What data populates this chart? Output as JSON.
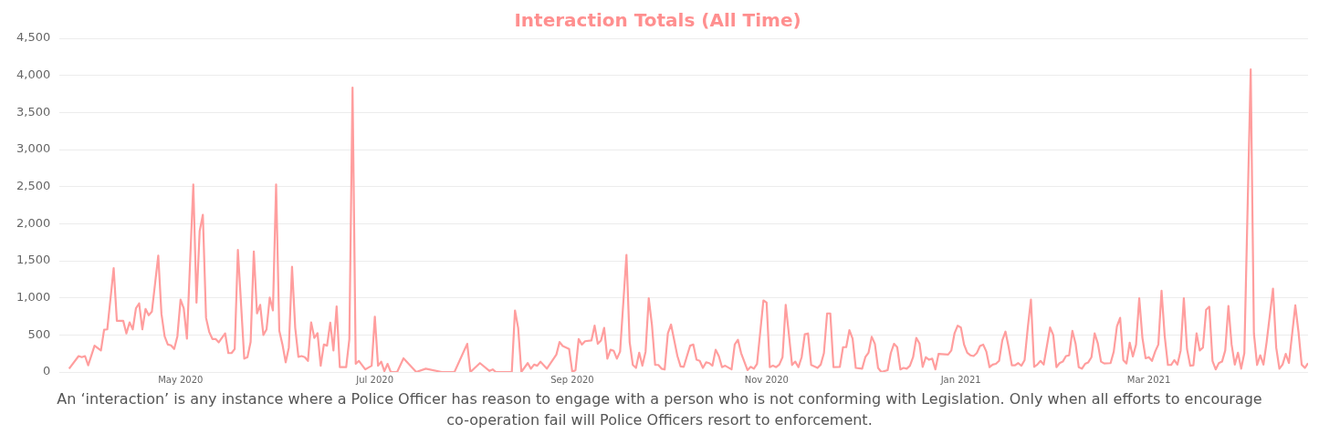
{
  "chart_data": {
    "type": "line",
    "title": "Interaction Totals (All Time)",
    "annotations": [
      "An ‘interaction’ is any instance where a Police Officer has reason to engage with a person who is not conforming with Legislation. Only when all efforts to encourage co-operation fail will Police Officers resort to enforcement."
    ],
    "xlim": [
      "2020-03-24",
      "2021-04-20"
    ],
    "xticks": [
      {
        "value": "2020-05-01",
        "label": "May 2020"
      },
      {
        "value": "2020-07-01",
        "label": "Jul 2020"
      },
      {
        "value": "2020-09-01",
        "label": "Sep 2020"
      },
      {
        "value": "2020-11-01",
        "label": "Nov 2020"
      },
      {
        "value": "2021-01-01",
        "label": "Jan 2021"
      },
      {
        "value": "2021-03-01",
        "label": "Mar 2021"
      }
    ],
    "ylim": [
      0,
      4500
    ],
    "yticks": [
      0,
      500,
      {
        "value": 1000,
        "label": "1,000"
      },
      {
        "value": 1500,
        "label": "1,500"
      },
      {
        "value": 2000,
        "label": "2,000"
      },
      {
        "value": 2500,
        "label": "2,500"
      },
      {
        "value": 3000,
        "label": "3,000"
      },
      {
        "value": 3500,
        "label": "3,500"
      },
      {
        "value": 4000,
        "label": "4,000"
      },
      {
        "value": 4500,
        "label": "4,500"
      }
    ],
    "grid": "y",
    "legend": false,
    "marker": "none",
    "line_style": "solid",
    "x": [
      "2020-03-27",
      "2020-03-30",
      "2020-03-31",
      "2020-04-01",
      "2020-04-02",
      "2020-04-04",
      "2020-04-06",
      "2020-04-07",
      "2020-04-08",
      "2020-04-10",
      "2020-04-11",
      "2020-04-13",
      "2020-04-14",
      "2020-04-15",
      "2020-04-16",
      "2020-04-17",
      "2020-04-18",
      "2020-04-19",
      "2020-04-20",
      "2020-04-21",
      "2020-04-22",
      "2020-04-24",
      "2020-04-25",
      "2020-04-26",
      "2020-04-27",
      "2020-04-28",
      "2020-04-29",
      "2020-04-30",
      "2020-05-01",
      "2020-05-02",
      "2020-05-03",
      "2020-05-05",
      "2020-05-06",
      "2020-05-07",
      "2020-05-08",
      "2020-05-09",
      "2020-05-10",
      "2020-05-11",
      "2020-05-12",
      "2020-05-13",
      "2020-05-15",
      "2020-05-16",
      "2020-05-17",
      "2020-05-18",
      "2020-05-19",
      "2020-05-21",
      "2020-05-22",
      "2020-05-23",
      "2020-05-24",
      "2020-05-25",
      "2020-05-26",
      "2020-05-27",
      "2020-05-28",
      "2020-05-29",
      "2020-05-30",
      "2020-05-31",
      "2020-06-01",
      "2020-06-02",
      "2020-06-03",
      "2020-06-04",
      "2020-06-05",
      "2020-06-06",
      "2020-06-07",
      "2020-06-08",
      "2020-06-09",
      "2020-06-10",
      "2020-06-11",
      "2020-06-12",
      "2020-06-13",
      "2020-06-14",
      "2020-06-15",
      "2020-06-16",
      "2020-06-17",
      "2020-06-18",
      "2020-06-19",
      "2020-06-20",
      "2020-06-22",
      "2020-06-23",
      "2020-06-24",
      "2020-06-25",
      "2020-06-26",
      "2020-06-28",
      "2020-06-30",
      "2020-07-01",
      "2020-07-02",
      "2020-07-03",
      "2020-07-04",
      "2020-07-05",
      "2020-07-06",
      "2020-07-08",
      "2020-07-10",
      "2020-07-14",
      "2020-07-17",
      "2020-07-22",
      "2020-07-26",
      "2020-07-30",
      "2020-07-31",
      "2020-08-03",
      "2020-08-06",
      "2020-08-07",
      "2020-08-08",
      "2020-08-13",
      "2020-08-14",
      "2020-08-15",
      "2020-08-16",
      "2020-08-18",
      "2020-08-19",
      "2020-08-20",
      "2020-08-21",
      "2020-08-22",
      "2020-08-24",
      "2020-08-27",
      "2020-08-28",
      "2020-08-29",
      "2020-08-31",
      "2020-09-01",
      "2020-09-02",
      "2020-09-03",
      "2020-09-04",
      "2020-09-05",
      "2020-09-07",
      "2020-09-08",
      "2020-09-09",
      "2020-09-10",
      "2020-09-11",
      "2020-09-12",
      "2020-09-13",
      "2020-09-14",
      "2020-09-15",
      "2020-09-16",
      "2020-09-18",
      "2020-09-19",
      "2020-09-20",
      "2020-09-21",
      "2020-09-22",
      "2020-09-23",
      "2020-09-24",
      "2020-09-25",
      "2020-09-26",
      "2020-09-27",
      "2020-09-28",
      "2020-09-29",
      "2020-09-30",
      "2020-10-01",
      "2020-10-02",
      "2020-10-04",
      "2020-10-05",
      "2020-10-06",
      "2020-10-07",
      "2020-10-08",
      "2020-10-09",
      "2020-10-10",
      "2020-10-11",
      "2020-10-12",
      "2020-10-13",
      "2020-10-14",
      "2020-10-15",
      "2020-10-16",
      "2020-10-17",
      "2020-10-18",
      "2020-10-19",
      "2020-10-21",
      "2020-10-22",
      "2020-10-23",
      "2020-10-24",
      "2020-10-26",
      "2020-10-27",
      "2020-10-28",
      "2020-10-29",
      "2020-10-31",
      "2020-11-01",
      "2020-11-02",
      "2020-11-03",
      "2020-11-04",
      "2020-11-05",
      "2020-11-06",
      "2020-11-07",
      "2020-11-08",
      "2020-11-09",
      "2020-11-10",
      "2020-11-11",
      "2020-11-12",
      "2020-11-13",
      "2020-11-14",
      "2020-11-15",
      "2020-11-17",
      "2020-11-18",
      "2020-11-19",
      "2020-11-20",
      "2020-11-21",
      "2020-11-22",
      "2020-11-24",
      "2020-11-25",
      "2020-11-26",
      "2020-11-27",
      "2020-11-28",
      "2020-11-29",
      "2020-12-01",
      "2020-12-02",
      "2020-12-03",
      "2020-12-04",
      "2020-12-05",
      "2020-12-06",
      "2020-12-07",
      "2020-12-09",
      "2020-12-10",
      "2020-12-11",
      "2020-12-12",
      "2020-12-13",
      "2020-12-14",
      "2020-12-15",
      "2020-12-16",
      "2020-12-17",
      "2020-12-18",
      "2020-12-19",
      "2020-12-20",
      "2020-12-21",
      "2020-12-22",
      "2020-12-23",
      "2020-12-24",
      "2020-12-25",
      "2020-12-28",
      "2020-12-29",
      "2020-12-30",
      "2020-12-31",
      "2021-01-01",
      "2021-01-02",
      "2021-01-03",
      "2021-01-04",
      "2021-01-05",
      "2021-01-06",
      "2021-01-07",
      "2021-01-08",
      "2021-01-09",
      "2021-01-10",
      "2021-01-11",
      "2021-01-12",
      "2021-01-13",
      "2021-01-14",
      "2021-01-15",
      "2021-01-16",
      "2021-01-17",
      "2021-01-18",
      "2021-01-19",
      "2021-01-20",
      "2021-01-21",
      "2021-01-22",
      "2021-01-23",
      "2021-01-24",
      "2021-01-25",
      "2021-01-26",
      "2021-01-27",
      "2021-01-29",
      "2021-01-30",
      "2021-01-31",
      "2021-02-01",
      "2021-02-02",
      "2021-02-03",
      "2021-02-04",
      "2021-02-05",
      "2021-02-06",
      "2021-02-07",
      "2021-02-08",
      "2021-02-09",
      "2021-02-10",
      "2021-02-11",
      "2021-02-12",
      "2021-02-13",
      "2021-02-14",
      "2021-02-15",
      "2021-02-17",
      "2021-02-18",
      "2021-02-19",
      "2021-02-20",
      "2021-02-21",
      "2021-02-22",
      "2021-02-23",
      "2021-02-24",
      "2021-02-25",
      "2021-02-26",
      "2021-02-27",
      "2021-02-28",
      "2021-03-01",
      "2021-03-02",
      "2021-03-03",
      "2021-03-04",
      "2021-03-05",
      "2021-03-06",
      "2021-03-07",
      "2021-03-08",
      "2021-03-09",
      "2021-03-10",
      "2021-03-11",
      "2021-03-12",
      "2021-03-13",
      "2021-03-14",
      "2021-03-15",
      "2021-03-16",
      "2021-03-17",
      "2021-03-18",
      "2021-03-19",
      "2021-03-20",
      "2021-03-21",
      "2021-03-22",
      "2021-03-23",
      "2021-03-24",
      "2021-03-25",
      "2021-03-26",
      "2021-03-27",
      "2021-03-28",
      "2021-03-29",
      "2021-03-30",
      "2021-03-31",
      "2021-04-02",
      "2021-04-03",
      "2021-04-04",
      "2021-04-05",
      "2021-04-06",
      "2021-04-07",
      "2021-04-09",
      "2021-04-10",
      "2021-04-11",
      "2021-04-12",
      "2021-04-13",
      "2021-04-14",
      "2021-04-16",
      "2021-04-17",
      "2021-04-18",
      "2021-04-19",
      "2021-04-20"
    ],
    "series": [
      {
        "color": "#ff9e9e",
        "values": [
          45,
          215,
          200,
          215,
          90,
          355,
          290,
          570,
          575,
          1400,
          690,
          690,
          520,
          670,
          575,
          860,
          925,
          575,
          850,
          765,
          815,
          1570,
          785,
          480,
          370,
          360,
          310,
          480,
          975,
          860,
          450,
          2530,
          935,
          1900,
          2120,
          730,
          540,
          445,
          445,
          400,
          520,
          255,
          255,
          310,
          1645,
          180,
          200,
          405,
          1625,
          790,
          905,
          500,
          575,
          1005,
          830,
          2530,
          555,
          370,
          130,
          330,
          1420,
          595,
          205,
          215,
          200,
          150,
          670,
          460,
          525,
          85,
          370,
          355,
          665,
          290,
          885,
          65,
          65,
          445,
          3835,
          110,
          150,
          35,
          85,
          745,
          85,
          140,
          10,
          110,
          0,
          0,
          185,
          0,
          45,
          0,
          0,
          380,
          0,
          120,
          15,
          35,
          0,
          0,
          830,
          595,
          0,
          120,
          45,
          100,
          85,
          140,
          45,
          235,
          405,
          350,
          310,
          0,
          25,
          445,
          370,
          415,
          425,
          625,
          380,
          425,
          595,
          180,
          300,
          285,
          180,
          275,
          1580,
          405,
          95,
          55,
          260,
          85,
          275,
          995,
          635,
          95,
          95,
          45,
          35,
          520,
          640,
          215,
          75,
          70,
          215,
          355,
          370,
          165,
          150,
          55,
          130,
          120,
          85,
          300,
          215,
          65,
          85,
          35,
          370,
          435,
          255,
          25,
          70,
          45,
          110,
          965,
          935,
          65,
          85,
          65,
          100,
          200,
          905,
          510,
          95,
          140,
          65,
          200,
          510,
          520,
          95,
          55,
          100,
          255,
          790,
          790,
          65,
          70,
          335,
          335,
          565,
          450,
          55,
          45,
          200,
          260,
          475,
          380,
          55,
          0,
          25,
          255,
          380,
          335,
          35,
          55,
          45,
          85,
          200,
          460,
          385,
          70,
          200,
          165,
          180,
          35,
          245,
          235,
          290,
          520,
          625,
          600,
          370,
          260,
          225,
          215,
          255,
          350,
          370,
          275,
          65,
          100,
          110,
          150,
          425,
          545,
          335,
          90,
          90,
          120,
          85,
          160,
          595,
          975,
          70,
          100,
          150,
          100,
          600,
          500,
          65,
          120,
          140,
          215,
          225,
          555,
          385,
          65,
          45,
          110,
          130,
          200,
          520,
          385,
          140,
          115,
          120,
          275,
          615,
          730,
          160,
          115,
          395,
          210,
          370,
          995,
          460,
          185,
          200,
          150,
          275,
          370,
          1095,
          480,
          95,
          95,
          160,
          100,
          290,
          995,
          310,
          85,
          90,
          520,
          290,
          330,
          840,
          880,
          150,
          35,
          120,
          140,
          290,
          890,
          370,
          100,
          260,
          45,
          255,
          4080,
          520,
          95,
          225,
          100,
          405,
          1125,
          330,
          45,
          100,
          245,
          120,
          900,
          540,
          100,
          55,
          120
        ]
      }
    ]
  }
}
